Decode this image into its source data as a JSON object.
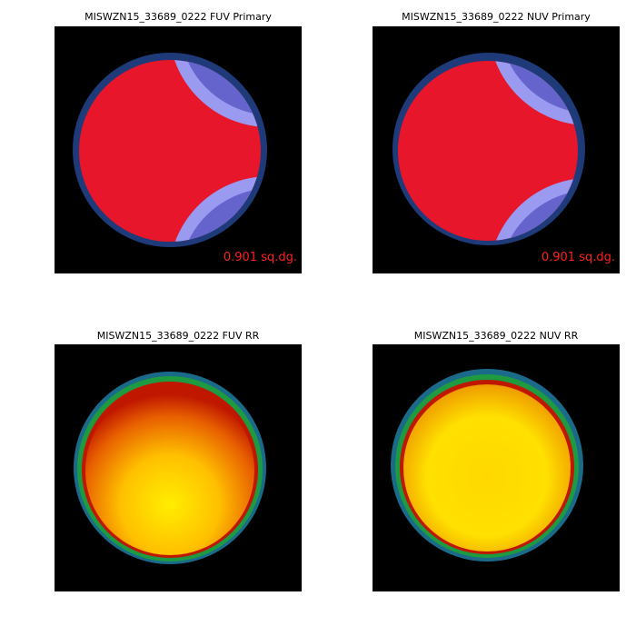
{
  "panels": [
    {
      "title": "MISWZN15_33689_0222 FUV Primary",
      "annotation": "0.901 sq.dg."
    },
    {
      "title": "MISWZN15_33689_0222 NUV Primary",
      "annotation": "0.901 sq.dg."
    },
    {
      "title": "MISWZN15_33689_0222 FUV RR"
    },
    {
      "title": "MISWZN15_33689_0222 NUV RR"
    }
  ]
}
